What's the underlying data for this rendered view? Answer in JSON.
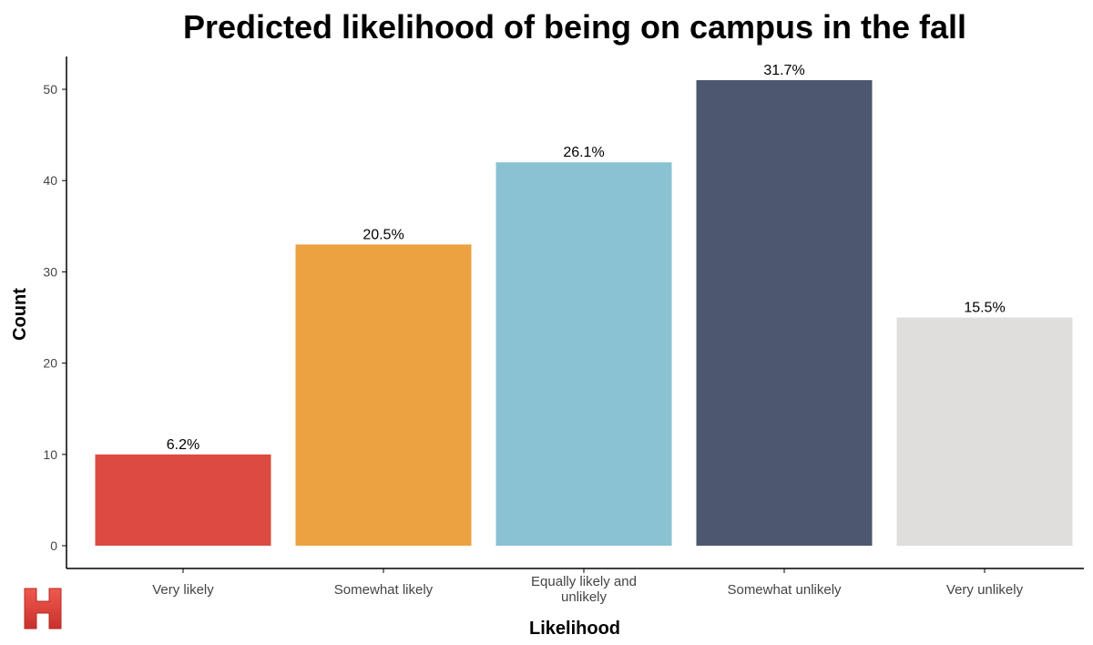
{
  "chart_data": {
    "type": "bar",
    "title": "Predicted likelihood of being on campus in the fall",
    "xlabel": "Likelihood",
    "ylabel": "Count",
    "ylim": [
      0,
      53
    ],
    "yticks": [
      0,
      10,
      20,
      30,
      40,
      50
    ],
    "ytick_labels": [
      "0",
      "10",
      "20",
      "30",
      "40",
      "50"
    ],
    "grid": false,
    "legend": "none",
    "categories": [
      [
        "Very likely"
      ],
      [
        "Somewhat likely"
      ],
      [
        "Equally likely and",
        "unlikely"
      ],
      [
        "Somewhat unlikely"
      ],
      [
        "Very unlikely"
      ]
    ],
    "values": [
      10,
      33,
      42,
      51,
      25
    ],
    "data_labels": [
      "6.2%",
      "20.5%",
      "26.1%",
      "31.7%",
      "15.5%"
    ],
    "colors": [
      "#dc4a42",
      "#eca241",
      "#8ac1d3",
      "#4e5770",
      "#e0dddd"
    ]
  },
  "logo": {
    "text": "H",
    "color": "#e0403a"
  }
}
